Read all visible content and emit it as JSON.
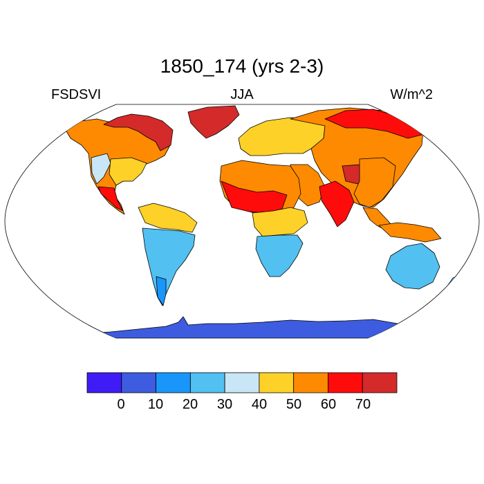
{
  "title": "1850_174 (yrs 2-3)",
  "subtitle": {
    "left": "FSDSVI",
    "center": "JJA",
    "right": "W/m^2"
  },
  "colorbar": {
    "colors": [
      "#3f1cf6",
      "#3d5ce0",
      "#1a96fa",
      "#52c0f0",
      "#c9e6f7",
      "#fdd127",
      "#fd8a00",
      "#fe0c0c",
      "#d42a2a"
    ],
    "labels": [
      "0",
      "10",
      "20",
      "30",
      "40",
      "50",
      "60",
      "70"
    ]
  },
  "regions": [
    {
      "name": "greenland",
      "color": "#d42a2a"
    },
    {
      "name": "canada-arctic",
      "color": "#d42a2a"
    },
    {
      "name": "north-america",
      "color": "#fd8a00"
    },
    {
      "name": "pacific-nw",
      "color": "#c9e6f7"
    },
    {
      "name": "usa-east",
      "color": "#fdd127"
    },
    {
      "name": "mexico",
      "color": "#fe0c0c"
    },
    {
      "name": "south-america-north",
      "color": "#fdd127"
    },
    {
      "name": "south-america",
      "color": "#52c0f0"
    },
    {
      "name": "patagonia",
      "color": "#1a96fa"
    },
    {
      "name": "europe",
      "color": "#fdd127"
    },
    {
      "name": "siberia",
      "color": "#fd8a00"
    },
    {
      "name": "russia-north",
      "color": "#fe0c0c"
    },
    {
      "name": "sahara",
      "color": "#fd8a00"
    },
    {
      "name": "sahel",
      "color": "#fe0c0c"
    },
    {
      "name": "east-africa",
      "color": "#fdd127"
    },
    {
      "name": "southern-africa",
      "color": "#52c0f0"
    },
    {
      "name": "middle-east",
      "color": "#fd8a00"
    },
    {
      "name": "india",
      "color": "#fe0c0c"
    },
    {
      "name": "tibet",
      "color": "#d42a2a"
    },
    {
      "name": "china",
      "color": "#fd8a00"
    },
    {
      "name": "southeast-asia",
      "color": "#fd8a00"
    },
    {
      "name": "indonesia",
      "color": "#fd8a00"
    },
    {
      "name": "australia",
      "color": "#52c0f0"
    },
    {
      "name": "new-zealand",
      "color": "#52c0f0"
    },
    {
      "name": "antarctica",
      "color": "#3d5ce0"
    }
  ]
}
